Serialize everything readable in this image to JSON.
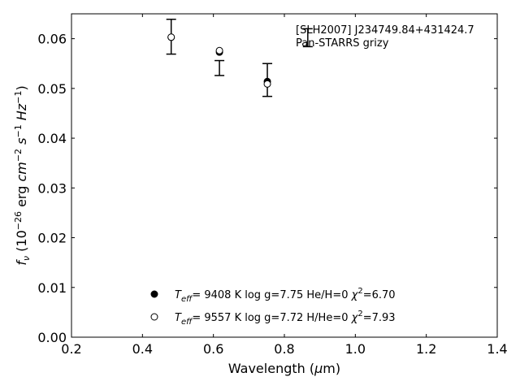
{
  "chart_data": {
    "type": "scatter",
    "title": "",
    "xlabel": "Wavelength (μm)",
    "ylabel": "fν (10⁻²⁶ erg cm⁻² s⁻¹ Hz⁻¹)",
    "xlim": [
      0.2,
      1.4
    ],
    "ylim": [
      0.0,
      0.065
    ],
    "xticks": [
      "0.2",
      "0.4",
      "0.6",
      "0.8",
      "1.0",
      "1.2",
      "1.4"
    ],
    "yticks": [
      "0.00",
      "0.01",
      "0.02",
      "0.03",
      "0.04",
      "0.05",
      "0.06"
    ],
    "xtick_values": [
      0.2,
      0.4,
      0.6,
      0.8,
      1.0,
      1.2,
      1.4
    ],
    "ytick_values": [
      0.0,
      0.01,
      0.02,
      0.03,
      0.04,
      0.05,
      0.06
    ],
    "grid": false,
    "annotation": {
      "line1": "[SLH2007] J234749.84+431424.7",
      "line2": "Pan-STARRS grizy"
    },
    "observed": {
      "x": [
        0.481,
        0.617,
        0.752,
        0.866
      ],
      "y": [
        0.0604,
        0.0541,
        0.0517,
        0.0602
      ],
      "yerr": [
        0.0035,
        0.0015,
        0.0033,
        0.0018
      ]
    },
    "series": [
      {
        "name": "Teff= 9408 K log g=7.75 He/H=0 χ²=6.70",
        "marker": "filled-circle",
        "x": [
          0.481,
          0.617,
          0.752
        ],
        "y": [
          0.0603,
          0.0573,
          0.0514
        ]
      },
      {
        "name": "Teff= 9557 K log g=7.72 H/He=0 χ²=7.93",
        "marker": "open-circle",
        "x": [
          0.481,
          0.617,
          0.752
        ],
        "y": [
          0.0603,
          0.0576,
          0.0509
        ]
      }
    ],
    "legend": {
      "placement": "lower-center",
      "entries": [
        {
          "teff": "9408 K",
          "logg": "log g=7.75",
          "comp": "He/H=0",
          "chi": "=6.70"
        },
        {
          "teff": "9557 K",
          "logg": "log g=7.72",
          "comp": "H/He=0",
          "chi": "=7.93"
        }
      ]
    }
  }
}
